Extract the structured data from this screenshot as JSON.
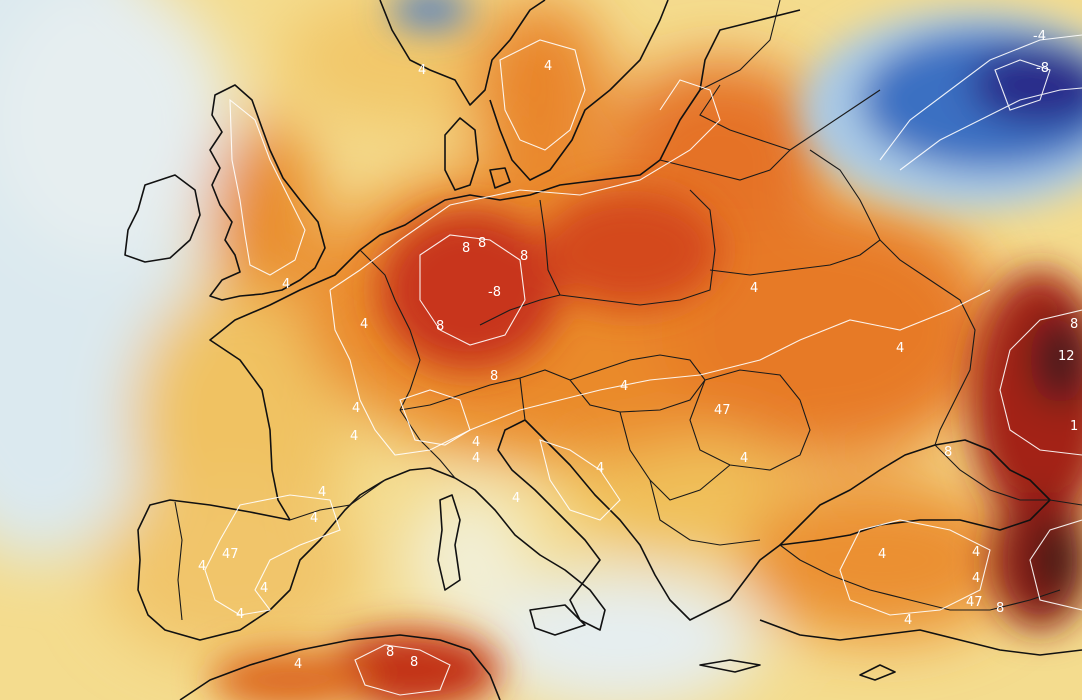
{
  "colors": {
    "ocean_light": "#e3eef2",
    "ocean_mid": "#c9dde6",
    "pale_yellow": "#f6e4a2",
    "yellow": "#f1c75e",
    "orange": "#ee9a33",
    "deep_orange": "#e2641f",
    "red_orange": "#cf3d14",
    "dark_red": "#a9220d",
    "very_dark": "#3b1b18",
    "blue_light": "#a9c9e6",
    "blue": "#3a6fc2",
    "blue_dark": "#2d2c8a",
    "purple": "#3a1c66",
    "isoline": "#ffffff",
    "coastline": "#111111"
  },
  "contour_labels": [
    {
      "id": "nw-russia-neg4",
      "text": "-4"
    },
    {
      "id": "nw-russia-neg8",
      "text": "-8"
    },
    {
      "id": "norway-4",
      "text": "4"
    },
    {
      "id": "sweden-4",
      "text": "4"
    },
    {
      "id": "germany-8a",
      "text": "8"
    },
    {
      "id": "germany-8b",
      "text": "8"
    },
    {
      "id": "germany-8c",
      "text": "8"
    },
    {
      "id": "germany-8d",
      "text": "-8"
    },
    {
      "id": "germany-8e",
      "text": "8"
    },
    {
      "id": "uk-4",
      "text": "4"
    },
    {
      "id": "france-4a",
      "text": "4"
    },
    {
      "id": "france-4b",
      "text": "4"
    },
    {
      "id": "france-4c",
      "text": "4"
    },
    {
      "id": "alps-8",
      "text": "8"
    },
    {
      "id": "italy-4a",
      "text": "4"
    },
    {
      "id": "italy-4b",
      "text": "4"
    },
    {
      "id": "balkan-4a",
      "text": "4"
    },
    {
      "id": "balkan-4b",
      "text": "4"
    },
    {
      "id": "hungary-4",
      "text": "4"
    },
    {
      "id": "romania-47",
      "text": "47"
    },
    {
      "id": "romania-4",
      "text": "4"
    },
    {
      "id": "poland-4",
      "text": "4"
    },
    {
      "id": "ukraine-4",
      "text": "4"
    },
    {
      "id": "russia-8",
      "text": "8"
    },
    {
      "id": "russia-12",
      "text": "12"
    },
    {
      "id": "russia-1",
      "text": "1"
    },
    {
      "id": "caucasus-8",
      "text": "8"
    },
    {
      "id": "spain-4a",
      "text": "4"
    },
    {
      "id": "spain-4b",
      "text": "4"
    },
    {
      "id": "spain-4c",
      "text": "4"
    },
    {
      "id": "spain-4d",
      "text": "4"
    },
    {
      "id": "spain-4e",
      "text": "4"
    },
    {
      "id": "spain-47",
      "text": "47"
    },
    {
      "id": "turkey-4a",
      "text": "4"
    },
    {
      "id": "turkey-4b",
      "text": "4"
    },
    {
      "id": "turkey-4c",
      "text": "4"
    },
    {
      "id": "turkey-47",
      "text": "47"
    },
    {
      "id": "turkey-8",
      "text": "8"
    },
    {
      "id": "turkey-4d",
      "text": "4"
    },
    {
      "id": "africa-8a",
      "text": "8"
    },
    {
      "id": "africa-8b",
      "text": "8"
    },
    {
      "id": "africa-4",
      "text": "4"
    }
  ]
}
